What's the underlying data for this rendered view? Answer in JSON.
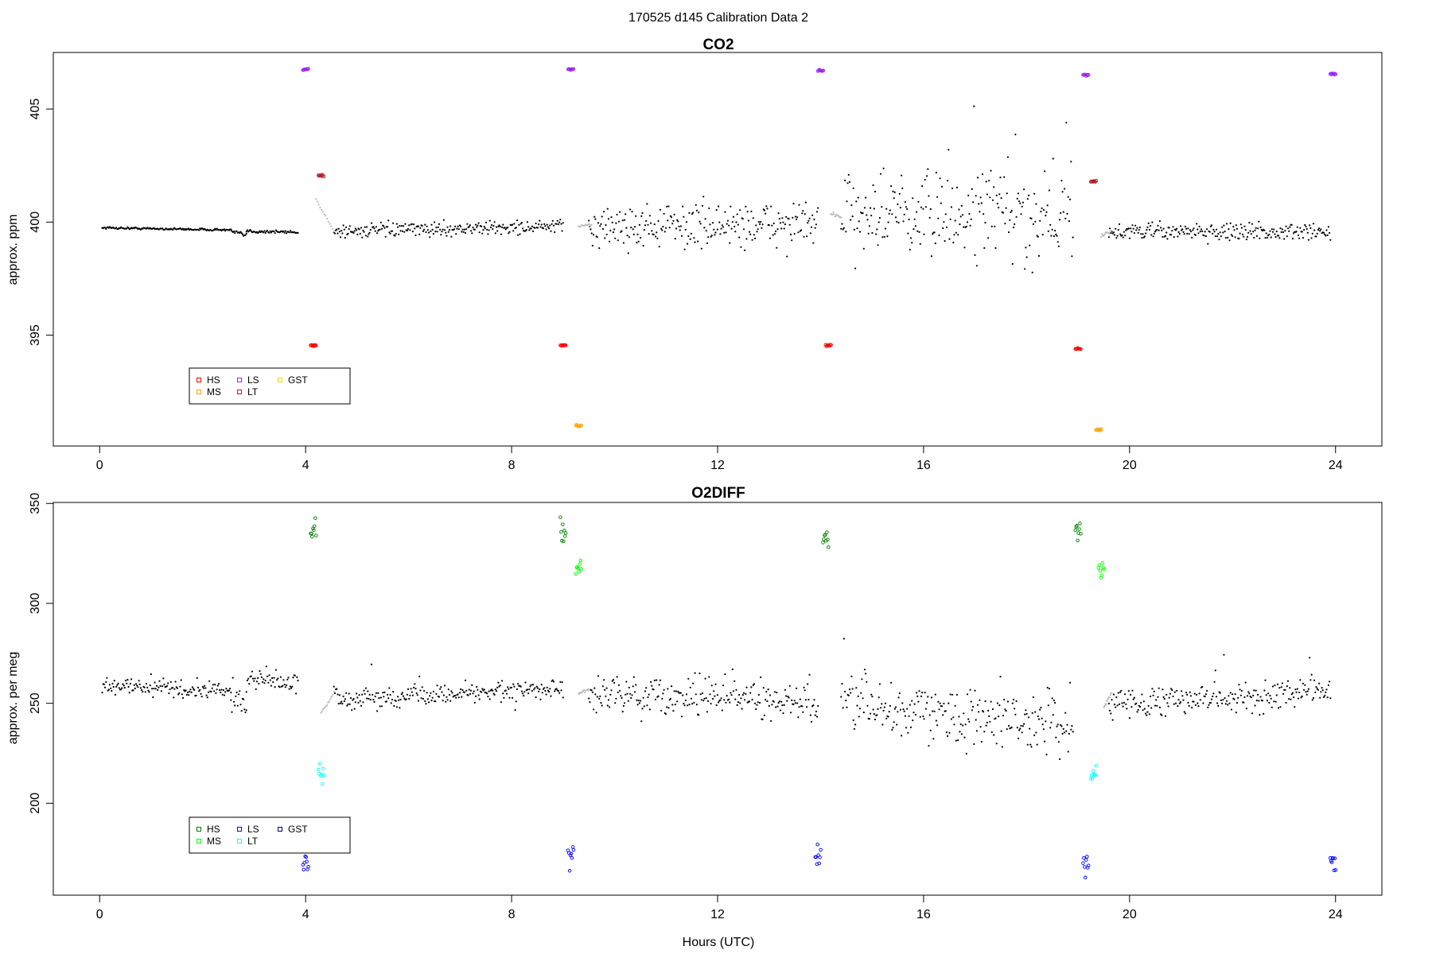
{
  "figure": {
    "title": "170525   d145   Calibration Data 2",
    "xlabel": "Hours (UTC)"
  },
  "chart_data": [
    {
      "type": "scatter",
      "title": "CO2",
      "xlabel": "",
      "ylabel": "approx. ppm",
      "xlim": [
        -0.9,
        24.9
      ],
      "ylim": [
        390.1,
        407.5
      ],
      "xticks": [
        0,
        4,
        8,
        12,
        16,
        20,
        24
      ],
      "yticks": [
        395,
        400,
        405
      ],
      "grid": false,
      "legend": {
        "position": "bottom-left",
        "entries": [
          {
            "name": "HS",
            "color": "#ff0000"
          },
          {
            "name": "MS",
            "color": "#ffa500"
          },
          {
            "name": "LS",
            "color": "#a020f0"
          },
          {
            "name": "LT",
            "color": "#b22222"
          },
          {
            "name": "GST",
            "color": "#ffd700"
          }
        ]
      },
      "ambient": {
        "color": "#000000",
        "segments": [
          {
            "x": [
              0.05,
              2.55
            ],
            "y": [
              399.75,
              399.65
            ],
            "noise": 0.05
          },
          {
            "x": [
              2.55,
              2.85
            ],
            "y": [
              399.6,
              399.4
            ],
            "noise": 0.1
          },
          {
            "x": [
              2.85,
              3.85
            ],
            "y": [
              399.6,
              399.55
            ],
            "noise": 0.08
          },
          {
            "x": [
              4.55,
              9.0
            ],
            "y": [
              399.6,
              399.8
            ],
            "noise": 0.3
          },
          {
            "x": [
              9.5,
              13.95
            ],
            "y": [
              399.8,
              399.9
            ],
            "noise": 1.0
          },
          {
            "x": [
              14.4,
              18.9
            ],
            "y": [
              400.3,
              400.3
            ],
            "noise": 2.0
          },
          {
            "x": [
              19.6,
              23.9
            ],
            "y": [
              399.6,
              399.55
            ],
            "noise": 0.4
          }
        ]
      },
      "flush": {
        "color": "#bbbbbb",
        "segments": [
          {
            "x": [
              4.2,
              4.55
            ],
            "y": [
              401.0,
              399.6
            ]
          },
          {
            "x": [
              9.3,
              9.55
            ],
            "y": [
              399.8,
              399.9
            ]
          },
          {
            "x": [
              14.2,
              14.4
            ],
            "y": [
              400.4,
              400.2
            ]
          },
          {
            "x": [
              19.45,
              19.65
            ],
            "y": [
              399.4,
              399.6
            ]
          }
        ]
      },
      "cal_series": [
        {
          "name": "LS",
          "color": "#a020f0",
          "points": [
            [
              4.0,
              406.75
            ],
            [
              9.15,
              406.75
            ],
            [
              14.0,
              406.7
            ],
            [
              19.15,
              406.5
            ],
            [
              23.95,
              406.55
            ]
          ]
        },
        {
          "name": "HS",
          "color": "#ff0000",
          "points": [
            [
              4.15,
              394.55
            ],
            [
              9.0,
              394.55
            ],
            [
              14.15,
              394.55
            ],
            [
              19.0,
              394.4
            ]
          ]
        },
        {
          "name": "MS",
          "color": "#ffa500",
          "points": [
            [
              9.3,
              391.0
            ],
            [
              19.4,
              390.8
            ]
          ]
        },
        {
          "name": "LT",
          "color": "#b22222",
          "points": [
            [
              4.3,
              402.05
            ],
            [
              19.3,
              401.8
            ]
          ]
        }
      ]
    },
    {
      "type": "scatter",
      "title": "O2DIFF",
      "xlabel": "Hours (UTC)",
      "ylabel": "approx. per meg",
      "xlim": [
        -0.9,
        24.9
      ],
      "ylim": [
        154,
        350.5
      ],
      "xticks": [
        0,
        4,
        8,
        12,
        16,
        20,
        24
      ],
      "yticks": [
        200,
        250,
        300,
        350
      ],
      "grid": false,
      "legend": {
        "position": "bottom-left",
        "entries": [
          {
            "name": "HS",
            "color": "#008000"
          },
          {
            "name": "MS",
            "color": "#00ff00"
          },
          {
            "name": "LS",
            "color": "#0000ff"
          },
          {
            "name": "LT",
            "color": "#00ffff"
          },
          {
            "name": "GST",
            "color": "#000080"
          }
        ]
      },
      "ambient": {
        "color": "#000000",
        "segments": [
          {
            "x": [
              0.05,
              2.55
            ],
            "y": [
              259,
              256
            ],
            "noise": 4
          },
          {
            "x": [
              2.55,
              2.85
            ],
            "y": [
              255,
              250
            ],
            "noise": 8
          },
          {
            "x": [
              2.85,
              3.85
            ],
            "y": [
              262,
              260
            ],
            "noise": 5
          },
          {
            "x": [
              4.55,
              9.0
            ],
            "y": [
              252,
              257
            ],
            "noise": 5
          },
          {
            "x": [
              9.5,
              13.95
            ],
            "y": [
              255,
              250
            ],
            "noise": 9
          },
          {
            "x": [
              14.4,
              18.9
            ],
            "y": [
              248,
              240
            ],
            "noise": 14
          },
          {
            "x": [
              19.6,
              23.9
            ],
            "y": [
              250,
              256
            ],
            "noise": 7
          }
        ]
      },
      "flush": {
        "color": "#bbbbbb",
        "segments": [
          {
            "x": [
              4.3,
              4.55
            ],
            "y": [
              245,
              255
            ]
          },
          {
            "x": [
              9.3,
              9.5
            ],
            "y": [
              255,
              257
            ]
          },
          {
            "x": [
              19.5,
              19.65
            ],
            "y": [
              248,
              255
            ]
          }
        ]
      },
      "cal_series": [
        {
          "name": "HS",
          "color": "#008000",
          "points": [
            [
              4.15,
              337
            ],
            [
              9.0,
              336
            ],
            [
              14.1,
              333
            ],
            [
              19.0,
              335
            ]
          ]
        },
        {
          "name": "MS",
          "color": "#00ff00",
          "points": [
            [
              9.3,
              320
            ],
            [
              19.45,
              318
            ]
          ]
        },
        {
          "name": "LT",
          "color": "#00ffff",
          "points": [
            [
              4.3,
              215
            ],
            [
              19.3,
              216
            ]
          ]
        },
        {
          "name": "LS",
          "color": "#0000ff",
          "points": [
            [
              4.0,
              168
            ],
            [
              9.15,
              172
            ],
            [
              13.95,
              173
            ],
            [
              19.15,
              169
            ],
            [
              23.95,
              172
            ]
          ]
        }
      ]
    }
  ]
}
